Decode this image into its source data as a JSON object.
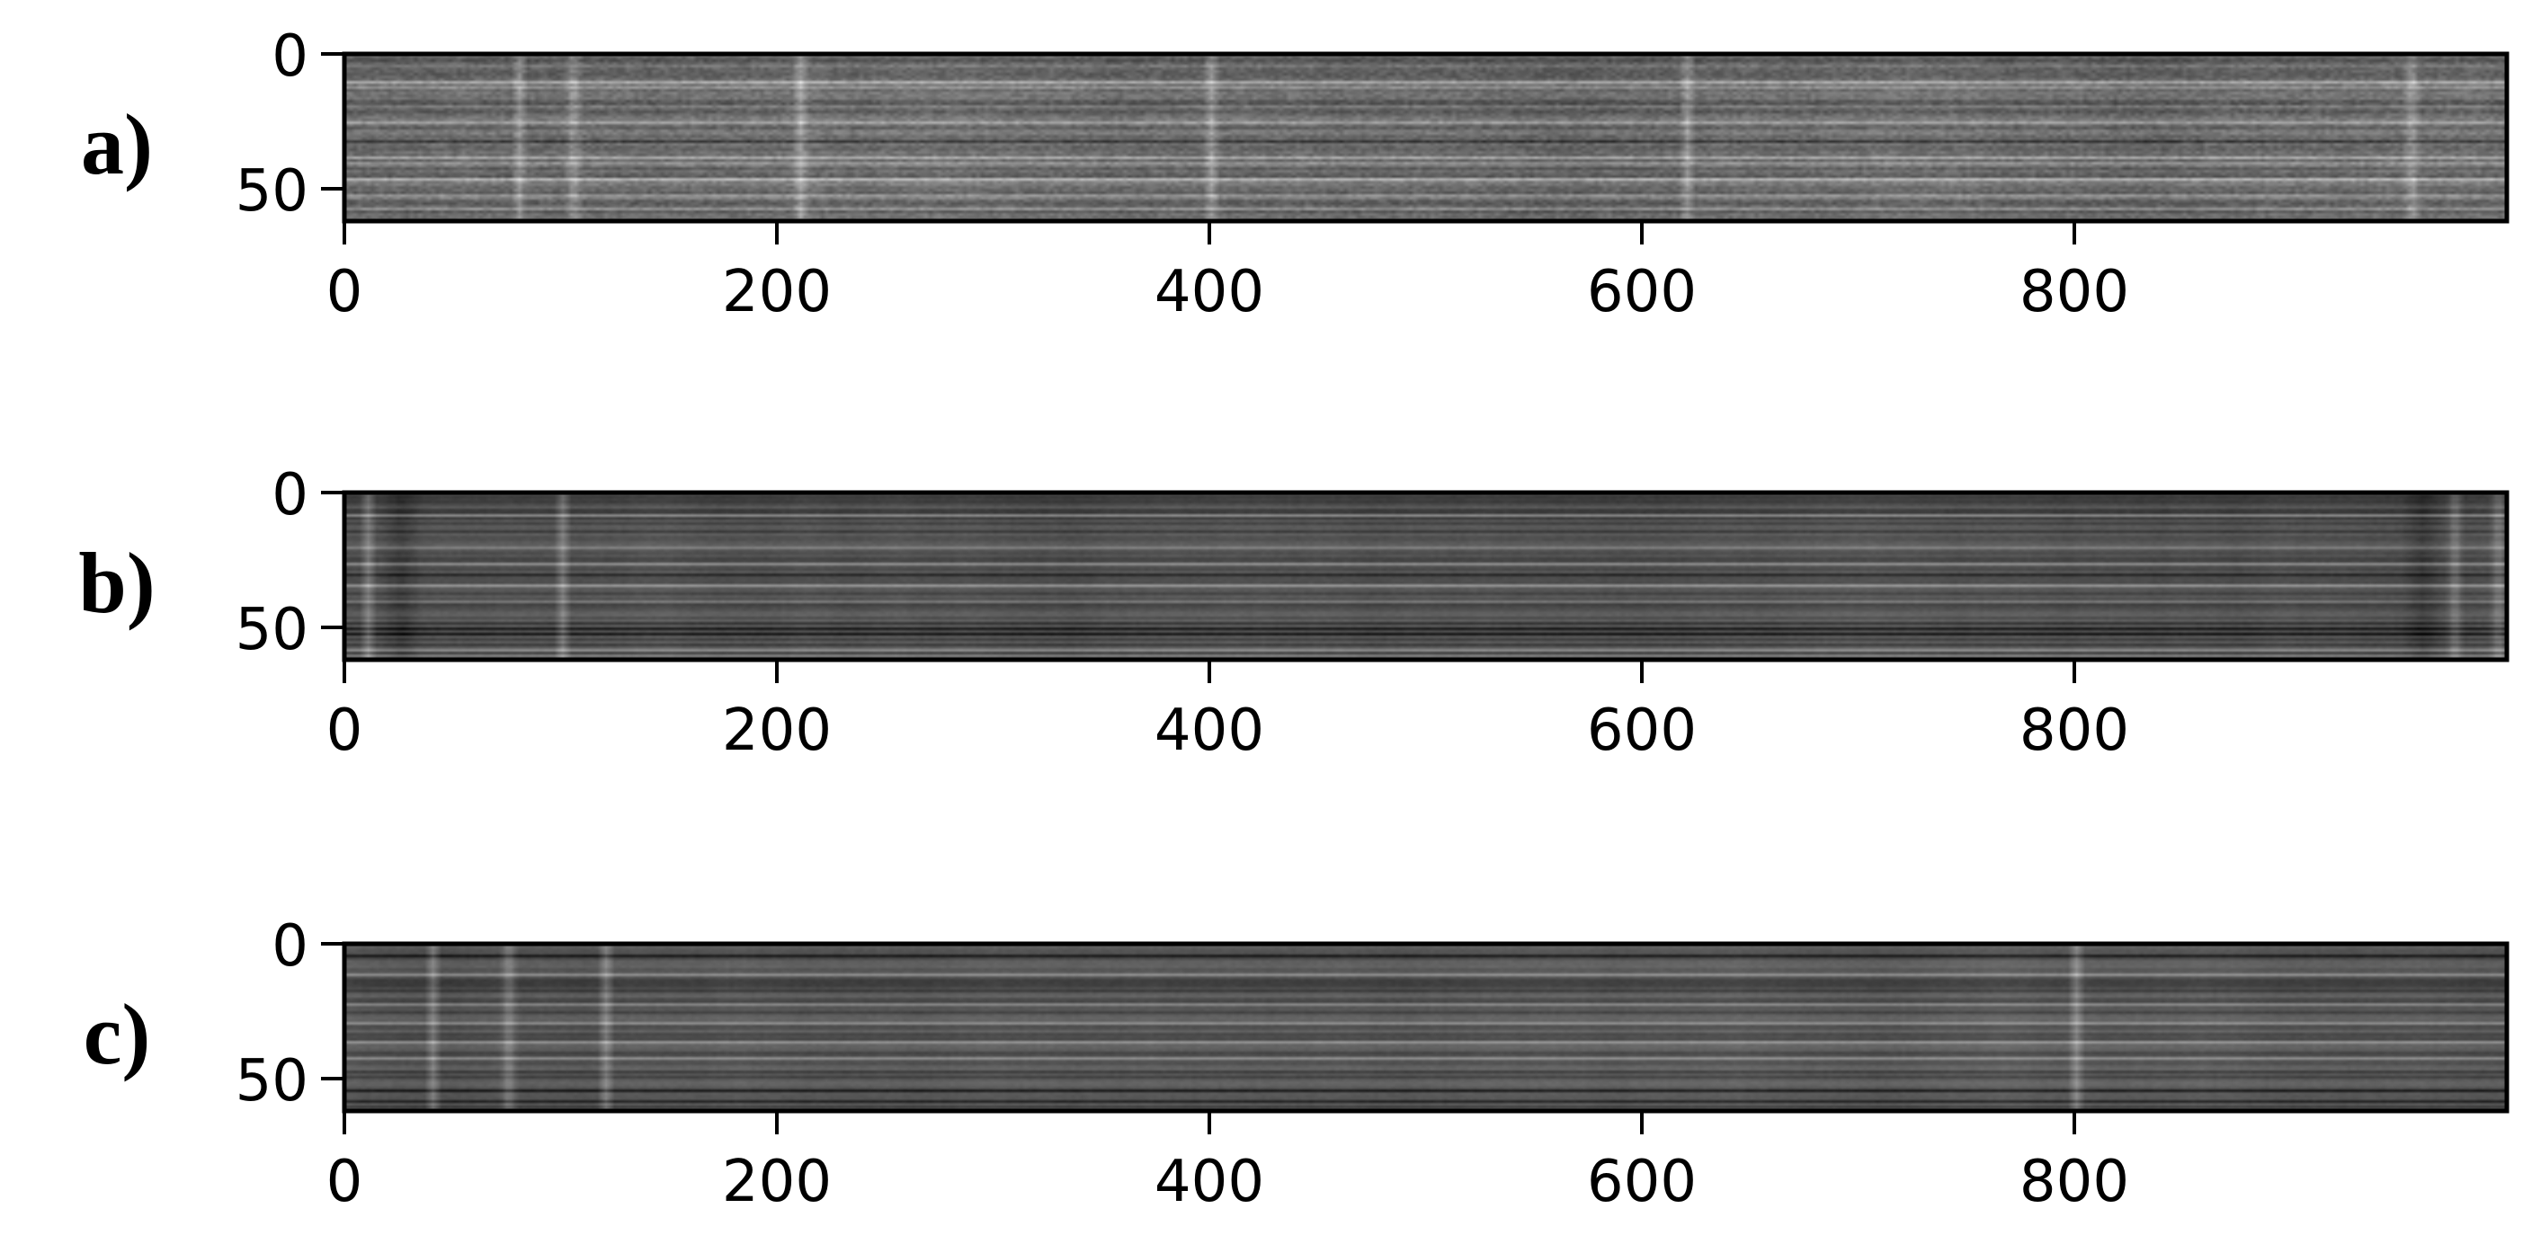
{
  "chart_data": [
    {
      "type": "heatmap",
      "panel_label": "a)",
      "colormap": "gray",
      "x_ticks": [
        "0",
        "200",
        "400",
        "600",
        "800"
      ],
      "y_ticks": [
        "0",
        "50"
      ],
      "xlim": [
        0,
        1000
      ],
      "ylim": [
        62,
        0
      ],
      "rows": 62,
      "cols": 1000,
      "base_intensity": 0.42,
      "bright_rows": [
        10,
        12,
        25,
        38,
        40,
        46,
        52,
        57
      ],
      "bright_cols": [
        80,
        105,
        210,
        400,
        620,
        955
      ],
      "dark_rows": [
        2,
        18,
        32,
        55
      ],
      "dark_cols": [],
      "texture": "fine-noise"
    },
    {
      "type": "heatmap",
      "panel_label": "b)",
      "colormap": "gray",
      "x_ticks": [
        "0",
        "200",
        "400",
        "600",
        "800"
      ],
      "y_ticks": [
        "0",
        "50"
      ],
      "xlim": [
        0,
        1000
      ],
      "ylim": [
        62,
        0
      ],
      "rows": 62,
      "cols": 1000,
      "base_intensity": 0.3,
      "bright_rows": [
        8,
        20,
        26,
        34,
        40,
        58,
        60
      ],
      "bright_cols": [
        10,
        100,
        975,
        995
      ],
      "dark_rows": [
        3,
        14,
        30,
        48,
        50,
        52
      ],
      "dark_cols": [
        25,
        960
      ],
      "texture": "smooth"
    },
    {
      "type": "heatmap",
      "panel_label": "c)",
      "colormap": "gray",
      "x_ticks": [
        "0",
        "200",
        "400",
        "600",
        "800"
      ],
      "y_ticks": [
        "0",
        "50"
      ],
      "xlim": [
        0,
        1000
      ],
      "ylim": [
        62,
        0
      ],
      "rows": 62,
      "cols": 1000,
      "base_intensity": 0.32,
      "bright_rows": [
        11,
        22,
        29,
        36,
        42
      ],
      "bright_cols": [
        40,
        75,
        120,
        800
      ],
      "dark_rows": [
        4,
        47,
        54,
        58
      ],
      "dark_cols": [],
      "texture": "smooth"
    }
  ]
}
